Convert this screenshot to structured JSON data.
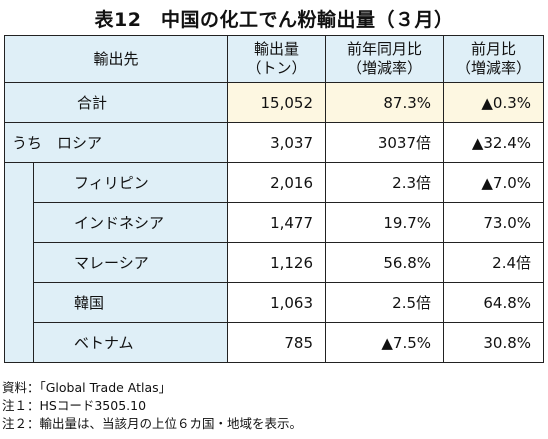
{
  "title": "表12　中国の化工でん粉輸出量（３月）",
  "headers": {
    "destination": "輸出先",
    "volume_line1": "輸出量",
    "volume_line2": "（トン）",
    "yoy_line1": "前年同月比",
    "yoy_line2": "（増減率）",
    "mom_line1": "前月比",
    "mom_line2": "（増減率）"
  },
  "rows": [
    {
      "label": "合計",
      "volume": "15,052",
      "yoy": "87.3%",
      "mom": "▲0.3%"
    },
    {
      "label": "うち　ロシア",
      "volume": "3,037",
      "yoy": "3037倍",
      "mom": "▲32.4%"
    },
    {
      "label": "フィリピン",
      "volume": "2,016",
      "yoy": "2.3倍",
      "mom": "▲7.0%"
    },
    {
      "label": "インドネシア",
      "volume": "1,477",
      "yoy": "19.7%",
      "mom": "73.0%"
    },
    {
      "label": "マレーシア",
      "volume": "1,126",
      "yoy": "56.8%",
      "mom": "2.4倍"
    },
    {
      "label": "韓国",
      "volume": "1,063",
      "yoy": "2.5倍",
      "mom": "64.8%"
    },
    {
      "label": "ベトナム",
      "volume": "785",
      "yoy": "▲7.5%",
      "mom": "30.8%"
    }
  ],
  "notes": [
    "資料：「Global Trade Atlas」",
    "注１：HSコード3505.10",
    "注２：輸出量は、当該月の上位６カ国・地域を表示。"
  ],
  "colors": {
    "header_bg": "#dfeff7",
    "total_bg": "#fdf7e1",
    "label_bg": "#dfeff7"
  }
}
